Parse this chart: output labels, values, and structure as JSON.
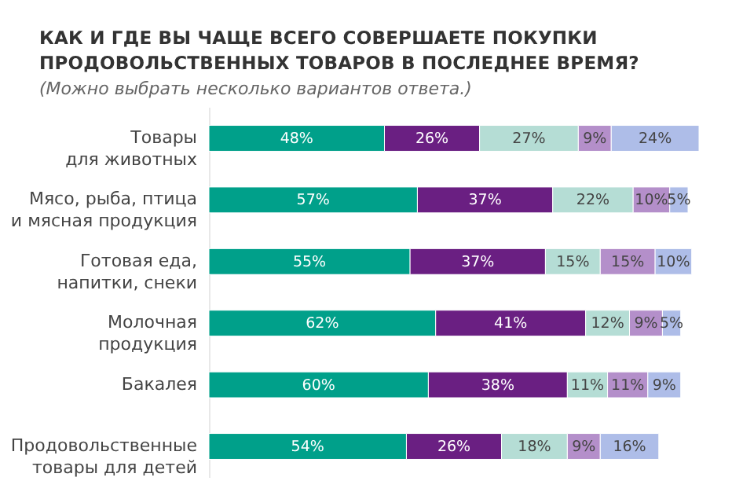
{
  "chart_data": {
    "type": "bar",
    "orientation": "horizontal",
    "stacked": true,
    "title": "КАК И ГДЕ ВЫ ЧАЩЕ ВСЕГО СОВЕРШАЕТЕ ПОКУПКИ ПРОДОВОЛЬСТВЕННЫХ ТОВАРОВ В ПОСЛЕДНЕЕ ВРЕМЯ?",
    "subtitle": "(Можно выбрать несколько вариантов ответа.)",
    "categories": [
      "Товары\nдля животных",
      "Мясо, рыба, птица\nи мясная продукция",
      "Готовая еда,\nнапитки, снеки",
      "Молочная\nпродукция",
      "Бакалея",
      "Продовольственные\nтовары для детей"
    ],
    "series": [
      {
        "color": "#00a08a",
        "values": [
          48,
          57,
          55,
          62,
          60,
          54
        ],
        "value_labels": [
          "48%",
          "57%",
          "55%",
          "62%",
          "60%",
          "54%"
        ]
      },
      {
        "color": "#6a1f82",
        "values": [
          26,
          37,
          37,
          41,
          38,
          26
        ],
        "value_labels": [
          "26%",
          "37%",
          "37%",
          "41%",
          "38%",
          "26%"
        ]
      },
      {
        "color": "#b5ddd5",
        "values": [
          27,
          22,
          15,
          12,
          11,
          18
        ],
        "value_labels": [
          "27%",
          "22%",
          "15%",
          "12%",
          "11%",
          "18%"
        ]
      },
      {
        "color": "#b48fca",
        "values": [
          9,
          10,
          15,
          9,
          11,
          9
        ],
        "value_labels": [
          "9%",
          "10%",
          "15%",
          "9%",
          "11%",
          "9%"
        ]
      },
      {
        "color": "#aebde8",
        "values": [
          24,
          5,
          10,
          5,
          9,
          16
        ],
        "value_labels": [
          "24%",
          "5%",
          "10%",
          "5%",
          "9%",
          "16%"
        ]
      }
    ]
  }
}
